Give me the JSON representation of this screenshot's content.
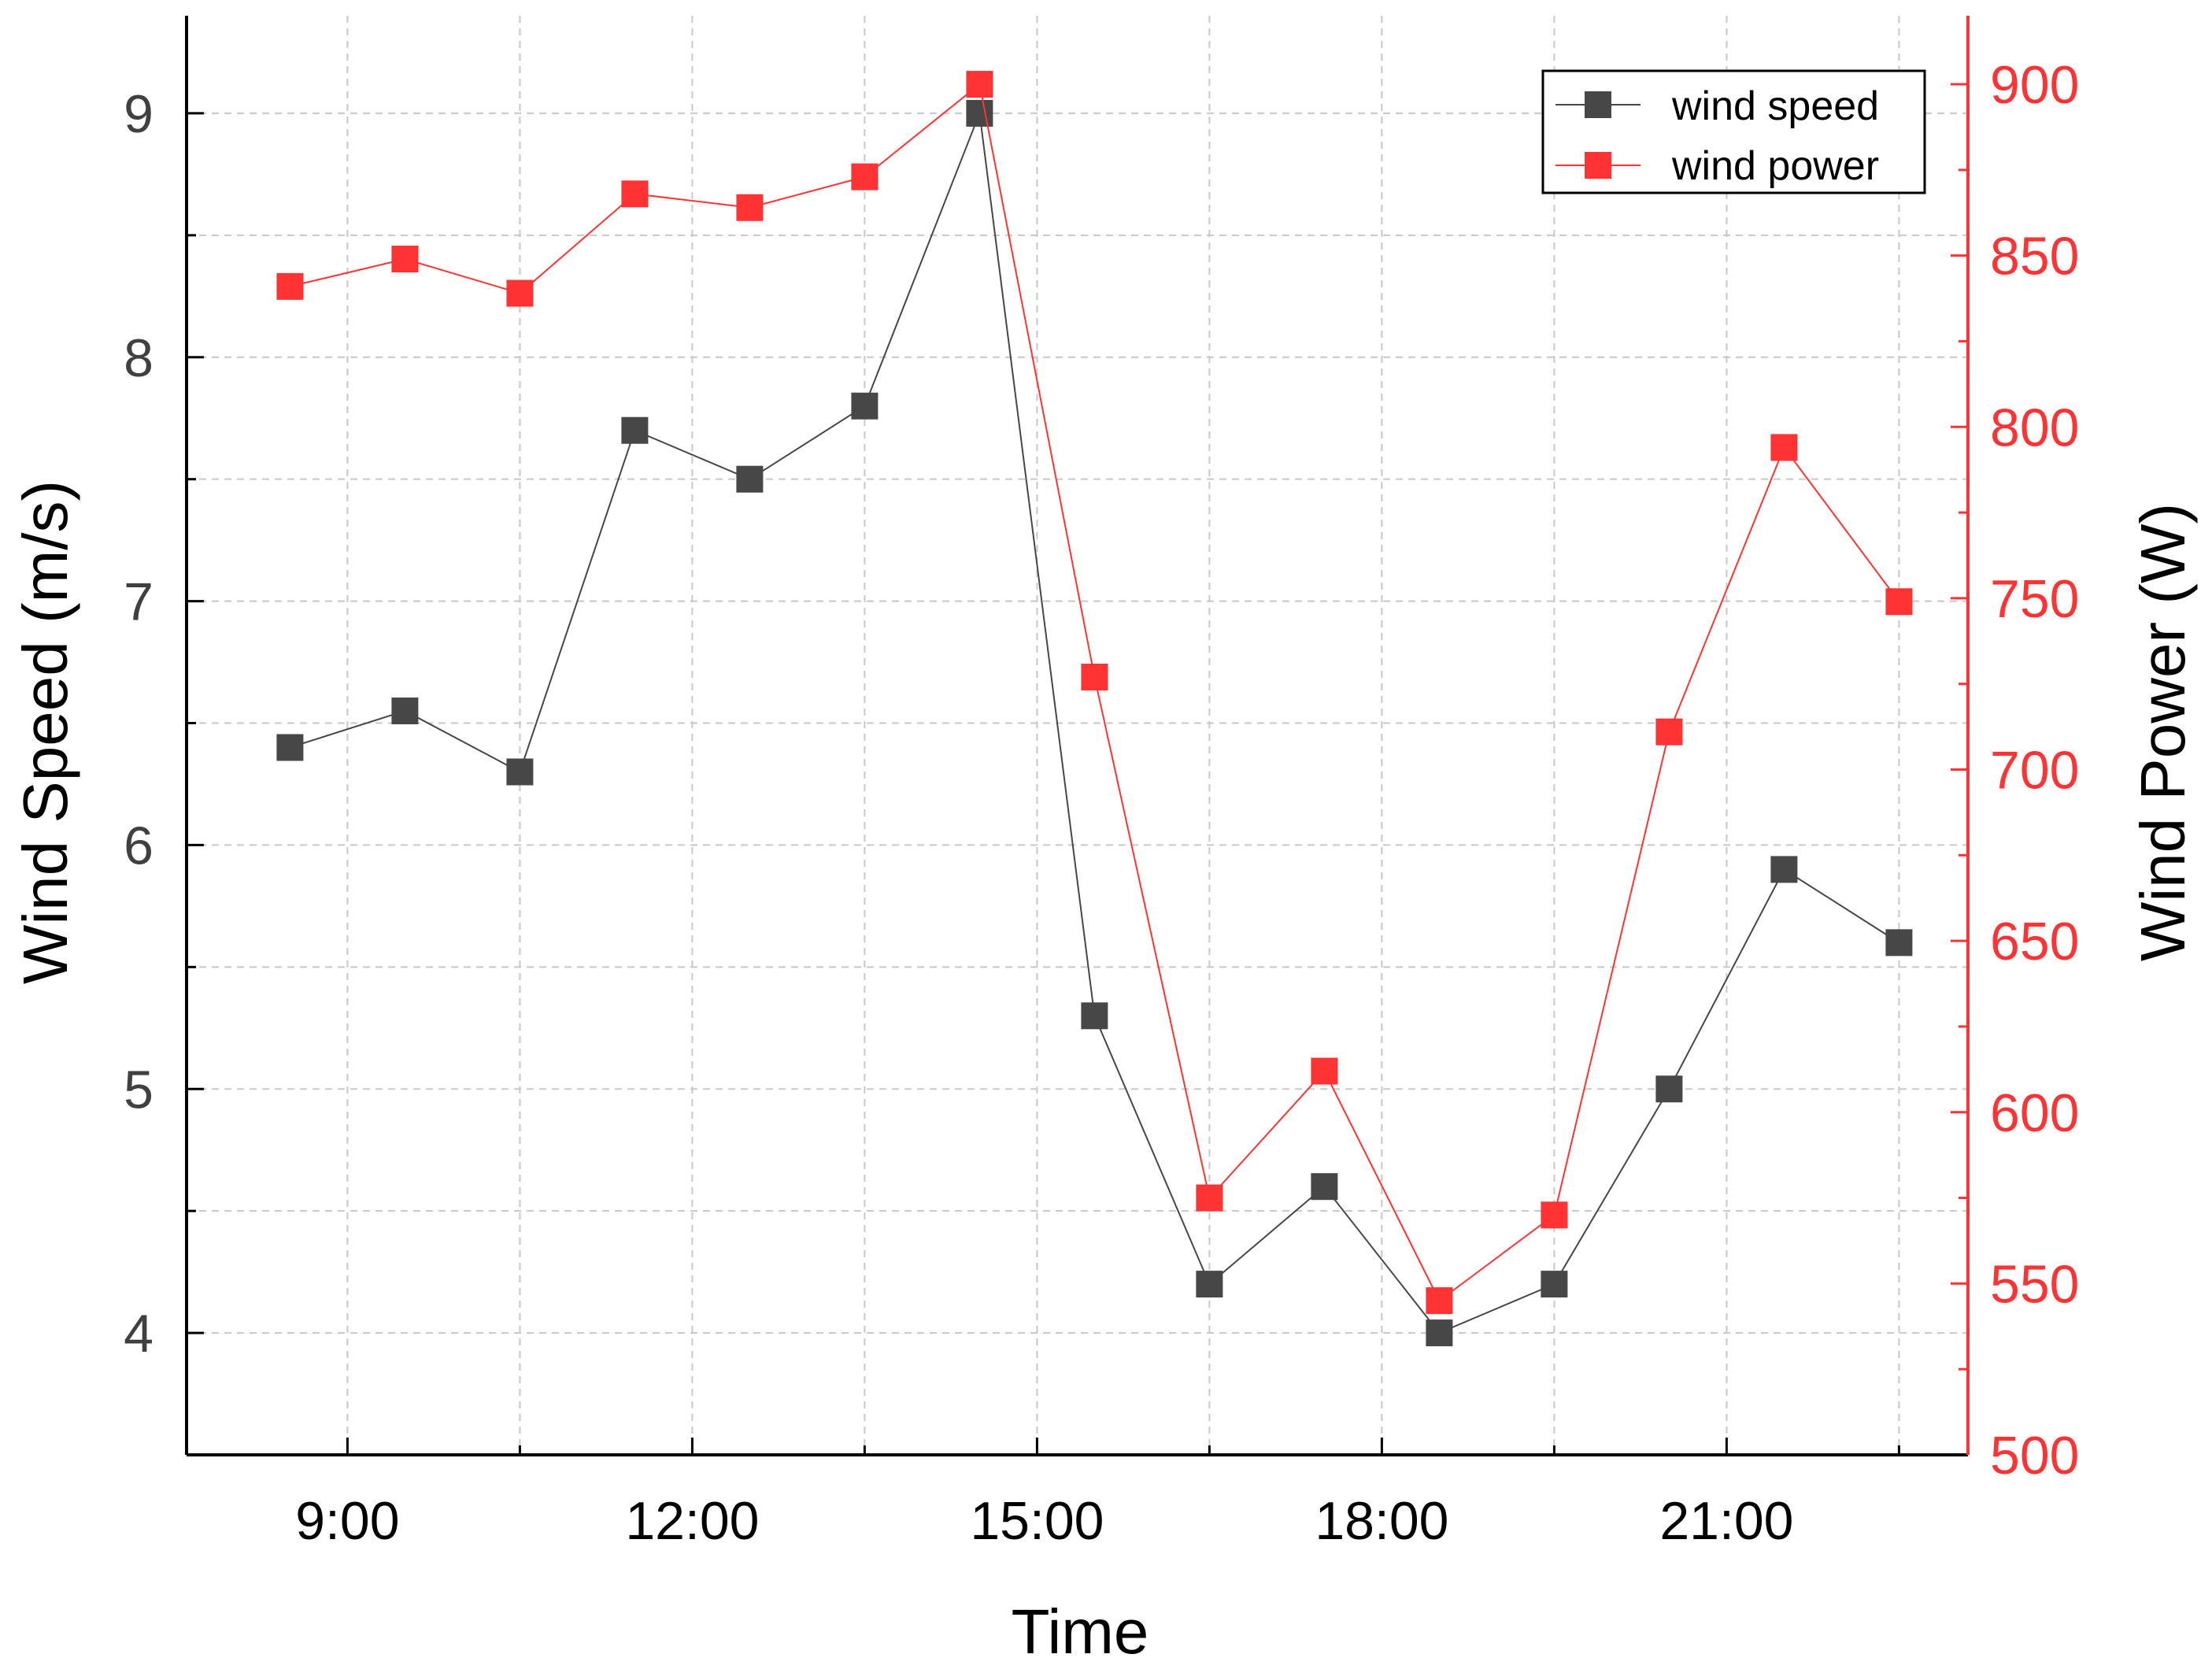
{
  "chart_data": {
    "type": "line",
    "title": "",
    "xlabel": "Time",
    "ylabel_left": "Wind Speed (m/s)",
    "ylabel_right": "Wind Power (W)",
    "x_tick_labels": [
      "9:00",
      "12:00",
      "15:00",
      "18:00",
      "21:00"
    ],
    "x_tick_hours": [
      9,
      12,
      15,
      18,
      21
    ],
    "xlim": [
      7.6,
      23.1
    ],
    "ylim_left": [
      3.5,
      9.4
    ],
    "ylim_right": [
      500,
      920
    ],
    "y_ticks_left": [
      4,
      5,
      6,
      7,
      8,
      9
    ],
    "y_ticks_right": [
      500,
      550,
      600,
      650,
      700,
      750,
      800,
      850,
      900
    ],
    "grid": true,
    "legend_position": "top-right",
    "x": [
      8.5,
      9.5,
      10.5,
      11.5,
      12.5,
      13.5,
      14.5,
      15.5,
      16.5,
      17.5,
      18.5,
      19.5,
      20.5,
      21.5,
      22.5
    ],
    "series": [
      {
        "name": "wind speed",
        "axis": "left",
        "color": "#474747",
        "values": [
          6.4,
          6.55,
          6.3,
          7.7,
          7.5,
          7.8,
          9.0,
          5.3,
          4.2,
          4.6,
          4.0,
          4.2,
          5.0,
          5.9,
          5.6
        ]
      },
      {
        "name": "wind power",
        "axis": "right",
        "color": "#ff3333",
        "values": [
          841,
          849,
          839,
          868,
          864,
          873,
          900,
          727,
          575,
          612,
          545,
          570,
          711,
          794,
          749
        ]
      }
    ]
  }
}
